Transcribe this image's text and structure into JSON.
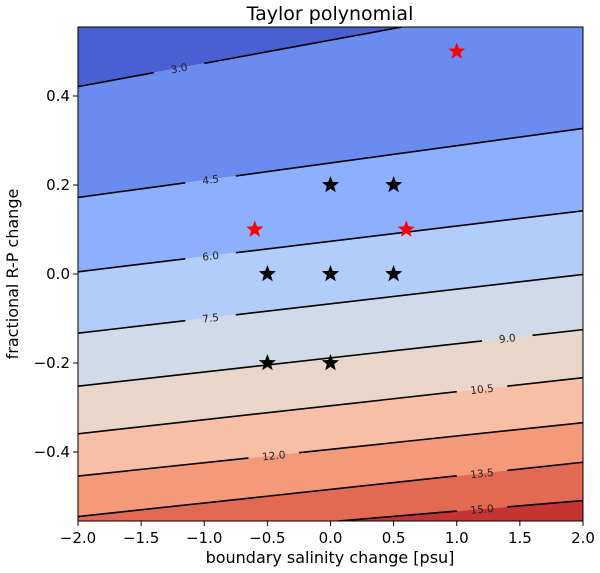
{
  "chart_data": {
    "type": "contour",
    "title": "Taylor polynomial",
    "xlabel": "boundary salinity change [psu]",
    "ylabel": "fractional R-P change",
    "xlim": [
      -2.0,
      2.0
    ],
    "ylim": [
      -0.555,
      0.555
    ],
    "xticks": [
      "−2.0",
      "−1.5",
      "−1.0",
      "−0.5",
      "0.0",
      "0.5",
      "1.0",
      "1.5",
      "2.0"
    ],
    "xtick_values": [
      -2.0,
      -1.5,
      -1.0,
      -0.5,
      0.0,
      0.5,
      1.0,
      1.5,
      2.0
    ],
    "yticks": [
      "−0.4",
      "−0.2",
      "0.0",
      "0.2",
      "0.4"
    ],
    "ytick_values": [
      -0.4,
      -0.2,
      0.0,
      0.2,
      0.4
    ],
    "colormap": "coolwarm",
    "band_colors": [
      "#4a5fd1",
      "#6a8bef",
      "#8db0fe",
      "#b3cdfb",
      "#d0dae9",
      "#ead5c9",
      "#f6bfa6",
      "#f49a7b",
      "#e26952",
      "#c63431"
    ],
    "contours": [
      {
        "level": 3.0,
        "label": "3.0",
        "y_at_xmin": 0.421,
        "y_at_xmax": 0.63,
        "label_x": -1.2
      },
      {
        "level": 4.5,
        "label": "4.5",
        "y_at_xmin": 0.172,
        "y_at_xmax": 0.327,
        "label_x": -0.95
      },
      {
        "level": 6.0,
        "label": "6.0",
        "y_at_xmin": 0.005,
        "y_at_xmax": 0.142,
        "label_x": -0.95
      },
      {
        "level": 7.5,
        "label": "7.5",
        "y_at_xmin": -0.133,
        "y_at_xmax": -0.001,
        "label_x": -0.95
      },
      {
        "level": 9.0,
        "label": "9.0",
        "y_at_xmin": -0.252,
        "y_at_xmax": -0.125,
        "label_x": 1.4
      },
      {
        "level": 10.5,
        "label": "10.5",
        "y_at_xmin": -0.359,
        "y_at_xmax": -0.233,
        "label_x": 1.2
      },
      {
        "level": 12.0,
        "label": "12.0",
        "y_at_xmin": -0.454,
        "y_at_xmax": -0.334,
        "label_x": -0.45
      },
      {
        "level": 13.5,
        "label": "13.5",
        "y_at_xmin": -0.545,
        "y_at_xmax": -0.423,
        "label_x": 1.2
      },
      {
        "level": 15.0,
        "label": "15.0",
        "y_at_xmin": -0.604,
        "y_at_xmax": -0.509,
        "label_x": 1.2
      }
    ],
    "points_black": [
      [
        0,
        0.2
      ],
      [
        0.5,
        0.2
      ],
      [
        -0.5,
        0
      ],
      [
        0,
        0
      ],
      [
        0.5,
        0
      ],
      [
        -0.5,
        -0.2
      ],
      [
        0,
        -0.2
      ]
    ],
    "points_red": [
      [
        1.0,
        0.5
      ],
      [
        -0.6,
        0.1
      ],
      [
        0.6,
        0.1
      ]
    ],
    "marker": "star",
    "grid": false
  }
}
